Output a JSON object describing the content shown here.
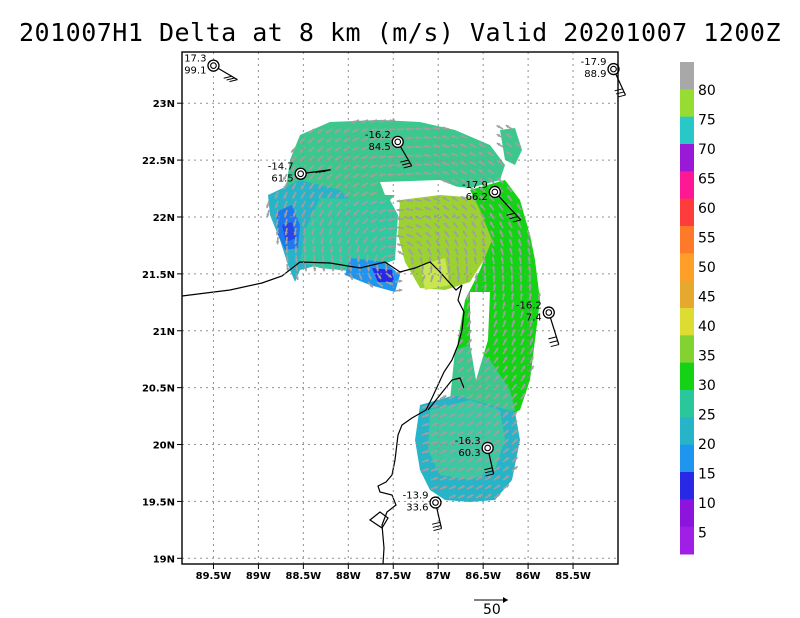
{
  "title": "201007H1 Delta at 8 km (m/s) Valid 20201007 1200Z",
  "map": {
    "x_ticks": [
      "89.5W",
      "89W",
      "88.5W",
      "88W",
      "87.5W",
      "87W",
      "86.5W",
      "86W",
      "85.5W"
    ],
    "y_ticks": [
      "23N",
      "22.5N",
      "22N",
      "21.5N",
      "21N",
      "20.5N",
      "20N",
      "19.5N",
      "19N"
    ],
    "lon_range": [
      -89.85,
      -85.0
    ],
    "lat_range": [
      18.95,
      23.45
    ],
    "grid": true
  },
  "colorbar": {
    "labels": [
      "80",
      "75",
      "70",
      "65",
      "60",
      "55",
      "50",
      "45",
      "40",
      "35",
      "30",
      "25",
      "20",
      "15",
      "10",
      "5"
    ],
    "colors": [
      "#a8a8a8",
      "#96dc32",
      "#28c8c8",
      "#9a18d8",
      "#ff1896",
      "#ff3c3c",
      "#ff7a28",
      "#ff9f28",
      "#e6a82d",
      "#dcdc32",
      "#82d232",
      "#14d214",
      "#28c89a",
      "#28b4c8",
      "#1e96f0",
      "#2828e6",
      "#8c14dc",
      "#a01ee6"
    ]
  },
  "observations": [
    {
      "top": "17.3",
      "bottom": "99.1",
      "lon": -89.5,
      "lat": 23.33
    },
    {
      "top": "-17.9",
      "bottom": "88.9",
      "lon": -85.05,
      "lat": 23.3
    },
    {
      "top": "-16.2",
      "bottom": "84.5",
      "lon": -87.45,
      "lat": 22.66
    },
    {
      "top": "-14.7",
      "bottom": "61.5",
      "lon": -88.53,
      "lat": 22.38
    },
    {
      "top": "-17.9",
      "bottom": "66.2",
      "lon": -86.37,
      "lat": 22.22
    },
    {
      "top": "-16.2",
      "bottom": "7.4",
      "lon": -85.77,
      "lat": 21.16
    },
    {
      "top": "-16.3",
      "bottom": "60.3",
      "lon": -86.45,
      "lat": 19.97
    },
    {
      "top": "-13.9",
      "bottom": "33.6",
      "lon": -87.03,
      "lat": 19.49
    }
  ],
  "reference_vector": {
    "label": "50"
  }
}
